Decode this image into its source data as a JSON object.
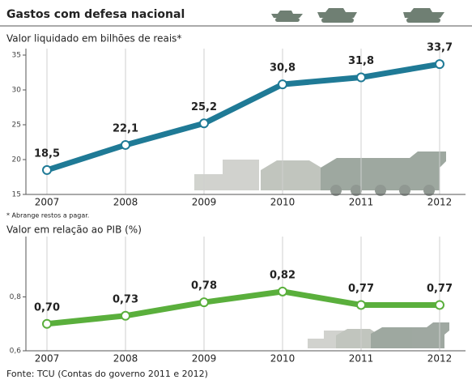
{
  "header": {
    "title": "Gastos com defesa nacional"
  },
  "chart_data": [
    {
      "type": "line",
      "title": "Valor liquidado em bilhões de reais*",
      "categories": [
        "2007",
        "2008",
        "2009",
        "2010",
        "2011",
        "2012"
      ],
      "values": [
        18.5,
        22.1,
        25.2,
        30.8,
        31.8,
        33.7
      ],
      "value_labels": [
        "18,5",
        "22,1",
        "25,2",
        "30,8",
        "31,8",
        "33,7"
      ],
      "color": "#1f7a96",
      "ylim": [
        15,
        35
      ],
      "yticks": [
        15,
        20,
        25,
        30,
        35
      ],
      "grid": true,
      "annotation": "* Abrange restos a pagar."
    },
    {
      "type": "line",
      "title": "Valor em relação ao PIB (%)",
      "categories": [
        "2007",
        "2008",
        "2009",
        "2010",
        "2011",
        "2012"
      ],
      "values": [
        0.7,
        0.73,
        0.78,
        0.82,
        0.77,
        0.77
      ],
      "value_labels": [
        "0,70",
        "0,73",
        "0,78",
        "0,82",
        "0,77",
        "0,77"
      ],
      "color": "#5aaf3c",
      "ylim": [
        0.6,
        1.0
      ],
      "yticks": [
        {
          "value": 0.6,
          "label": "0,6"
        },
        {
          "value": 0.8,
          "label": "0,8"
        }
      ],
      "grid": true
    }
  ],
  "source": "Fonte: TCU (Contas do governo 2011 e 2012)"
}
